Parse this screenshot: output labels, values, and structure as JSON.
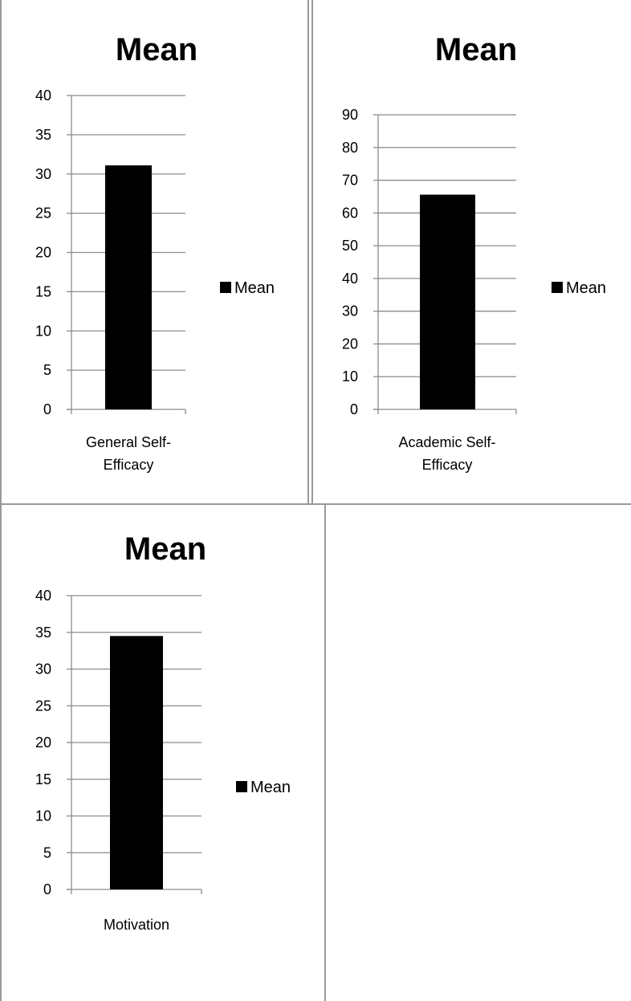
{
  "chart_data": [
    {
      "type": "bar",
      "title": "Mean",
      "categories": [
        "General Self-Efficacy"
      ],
      "category_lines": [
        "General Self-",
        "Efficacy"
      ],
      "series": [
        {
          "name": "Mean",
          "values": [
            31.1
          ]
        }
      ],
      "ylim": [
        0,
        40
      ],
      "yticks": [
        0,
        5,
        10,
        15,
        20,
        25,
        30,
        35,
        40
      ],
      "grid": true,
      "legend": "right",
      "bar_color": "#000000"
    },
    {
      "type": "bar",
      "title": "Mean",
      "categories": [
        "Academic Self-Efficacy"
      ],
      "category_lines": [
        "Academic Self-",
        "Efficacy"
      ],
      "series": [
        {
          "name": "Mean",
          "values": [
            65.6
          ]
        }
      ],
      "ylim": [
        0,
        90
      ],
      "yticks": [
        0,
        10,
        20,
        30,
        40,
        50,
        60,
        70,
        80,
        90
      ],
      "grid": true,
      "legend": "right",
      "bar_color": "#000000"
    },
    {
      "type": "bar",
      "title": "Mean",
      "categories": [
        "Motivation"
      ],
      "category_lines": [
        "Motivation"
      ],
      "series": [
        {
          "name": "Mean",
          "values": [
            34.5
          ]
        }
      ],
      "ylim": [
        0,
        40
      ],
      "yticks": [
        0,
        5,
        10,
        15,
        20,
        25,
        30,
        35,
        40
      ],
      "grid": true,
      "legend": "right",
      "bar_color": "#000000"
    }
  ]
}
